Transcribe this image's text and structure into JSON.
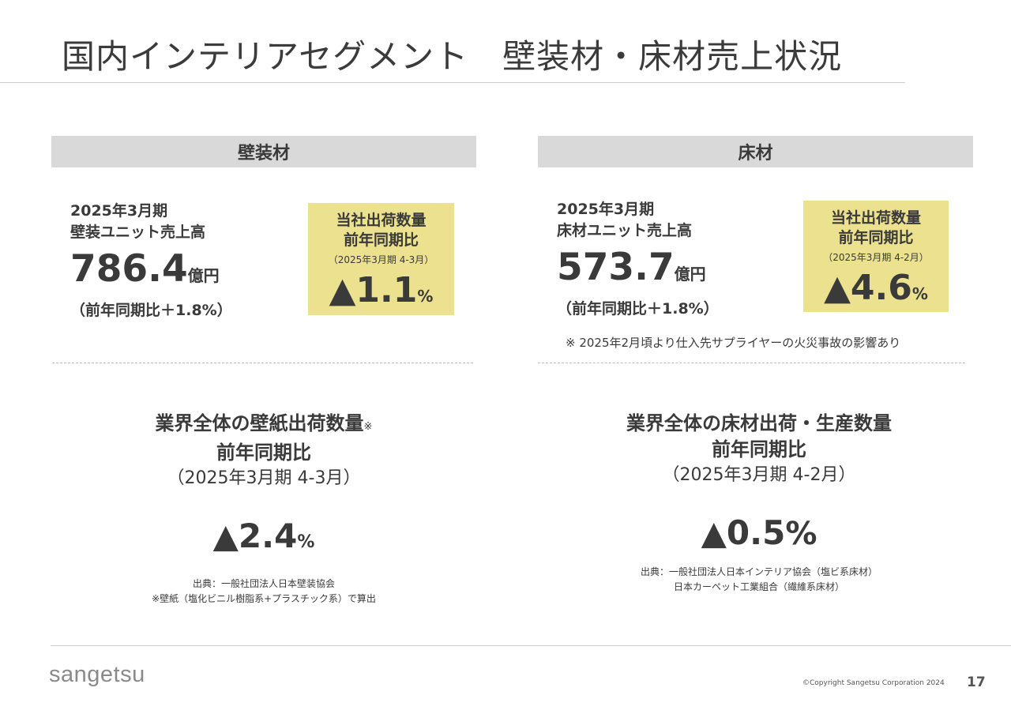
{
  "title": "国内インテリアセグメント　壁装材・床材売上状況",
  "wall": {
    "header": "壁装材",
    "period": "2025年3月期",
    "unit_name": "壁装ユニット売上高",
    "sales_value": "786.4",
    "sales_unit": "億円",
    "sales_yoy": "（前年同期比＋1.8%）",
    "shipment": {
      "title_line1": "当社出荷数量",
      "title_line2": "前年同期比",
      "period": "（2025年3月期 4-3月）",
      "value": "▲1.1",
      "pct": "%"
    },
    "industry": {
      "title_line1": "業界全体の壁紙出荷数量",
      "title_mark": "※",
      "title_line2": "前年同期比",
      "period": "（2025年3月期 4-3月）",
      "value": "▲2.4",
      "pct": "%",
      "source_line1": "出典：一般社団法人日本壁装協会",
      "source_line2": "※壁紙（塩化ビニル樹脂系+プラスチック系）で算出"
    }
  },
  "floor": {
    "header": "床材",
    "period": "2025年3月期",
    "unit_name": "床材ユニット売上高",
    "sales_value": "573.7",
    "sales_unit": "億円",
    "sales_yoy": "（前年同期比＋1.8%）",
    "shipment": {
      "title_line1": "当社出荷数量",
      "title_line2": "前年同期比",
      "period": "（2025年3月期 4-2月）",
      "value": "▲4.6",
      "pct": "%"
    },
    "note": "※ 2025年2月頃より仕入先サプライヤーの火災事故の影響あり",
    "industry": {
      "title_line1": "業界全体の床材出荷・生産数量",
      "title_line2": "前年同期比",
      "period": "（2025年3月期 4-2月）",
      "value": "▲0.5",
      "pct": "%",
      "source_line1": "出典：一般社団法人日本インテリア協会（塩ビ系床材）",
      "source_line2": "日本カーペット工業組合（繊維系床材）"
    }
  },
  "footer": {
    "logo": "sangetsu",
    "copyright": "©Copyright Sangetsu Corporation 2024",
    "page_number": "17"
  }
}
